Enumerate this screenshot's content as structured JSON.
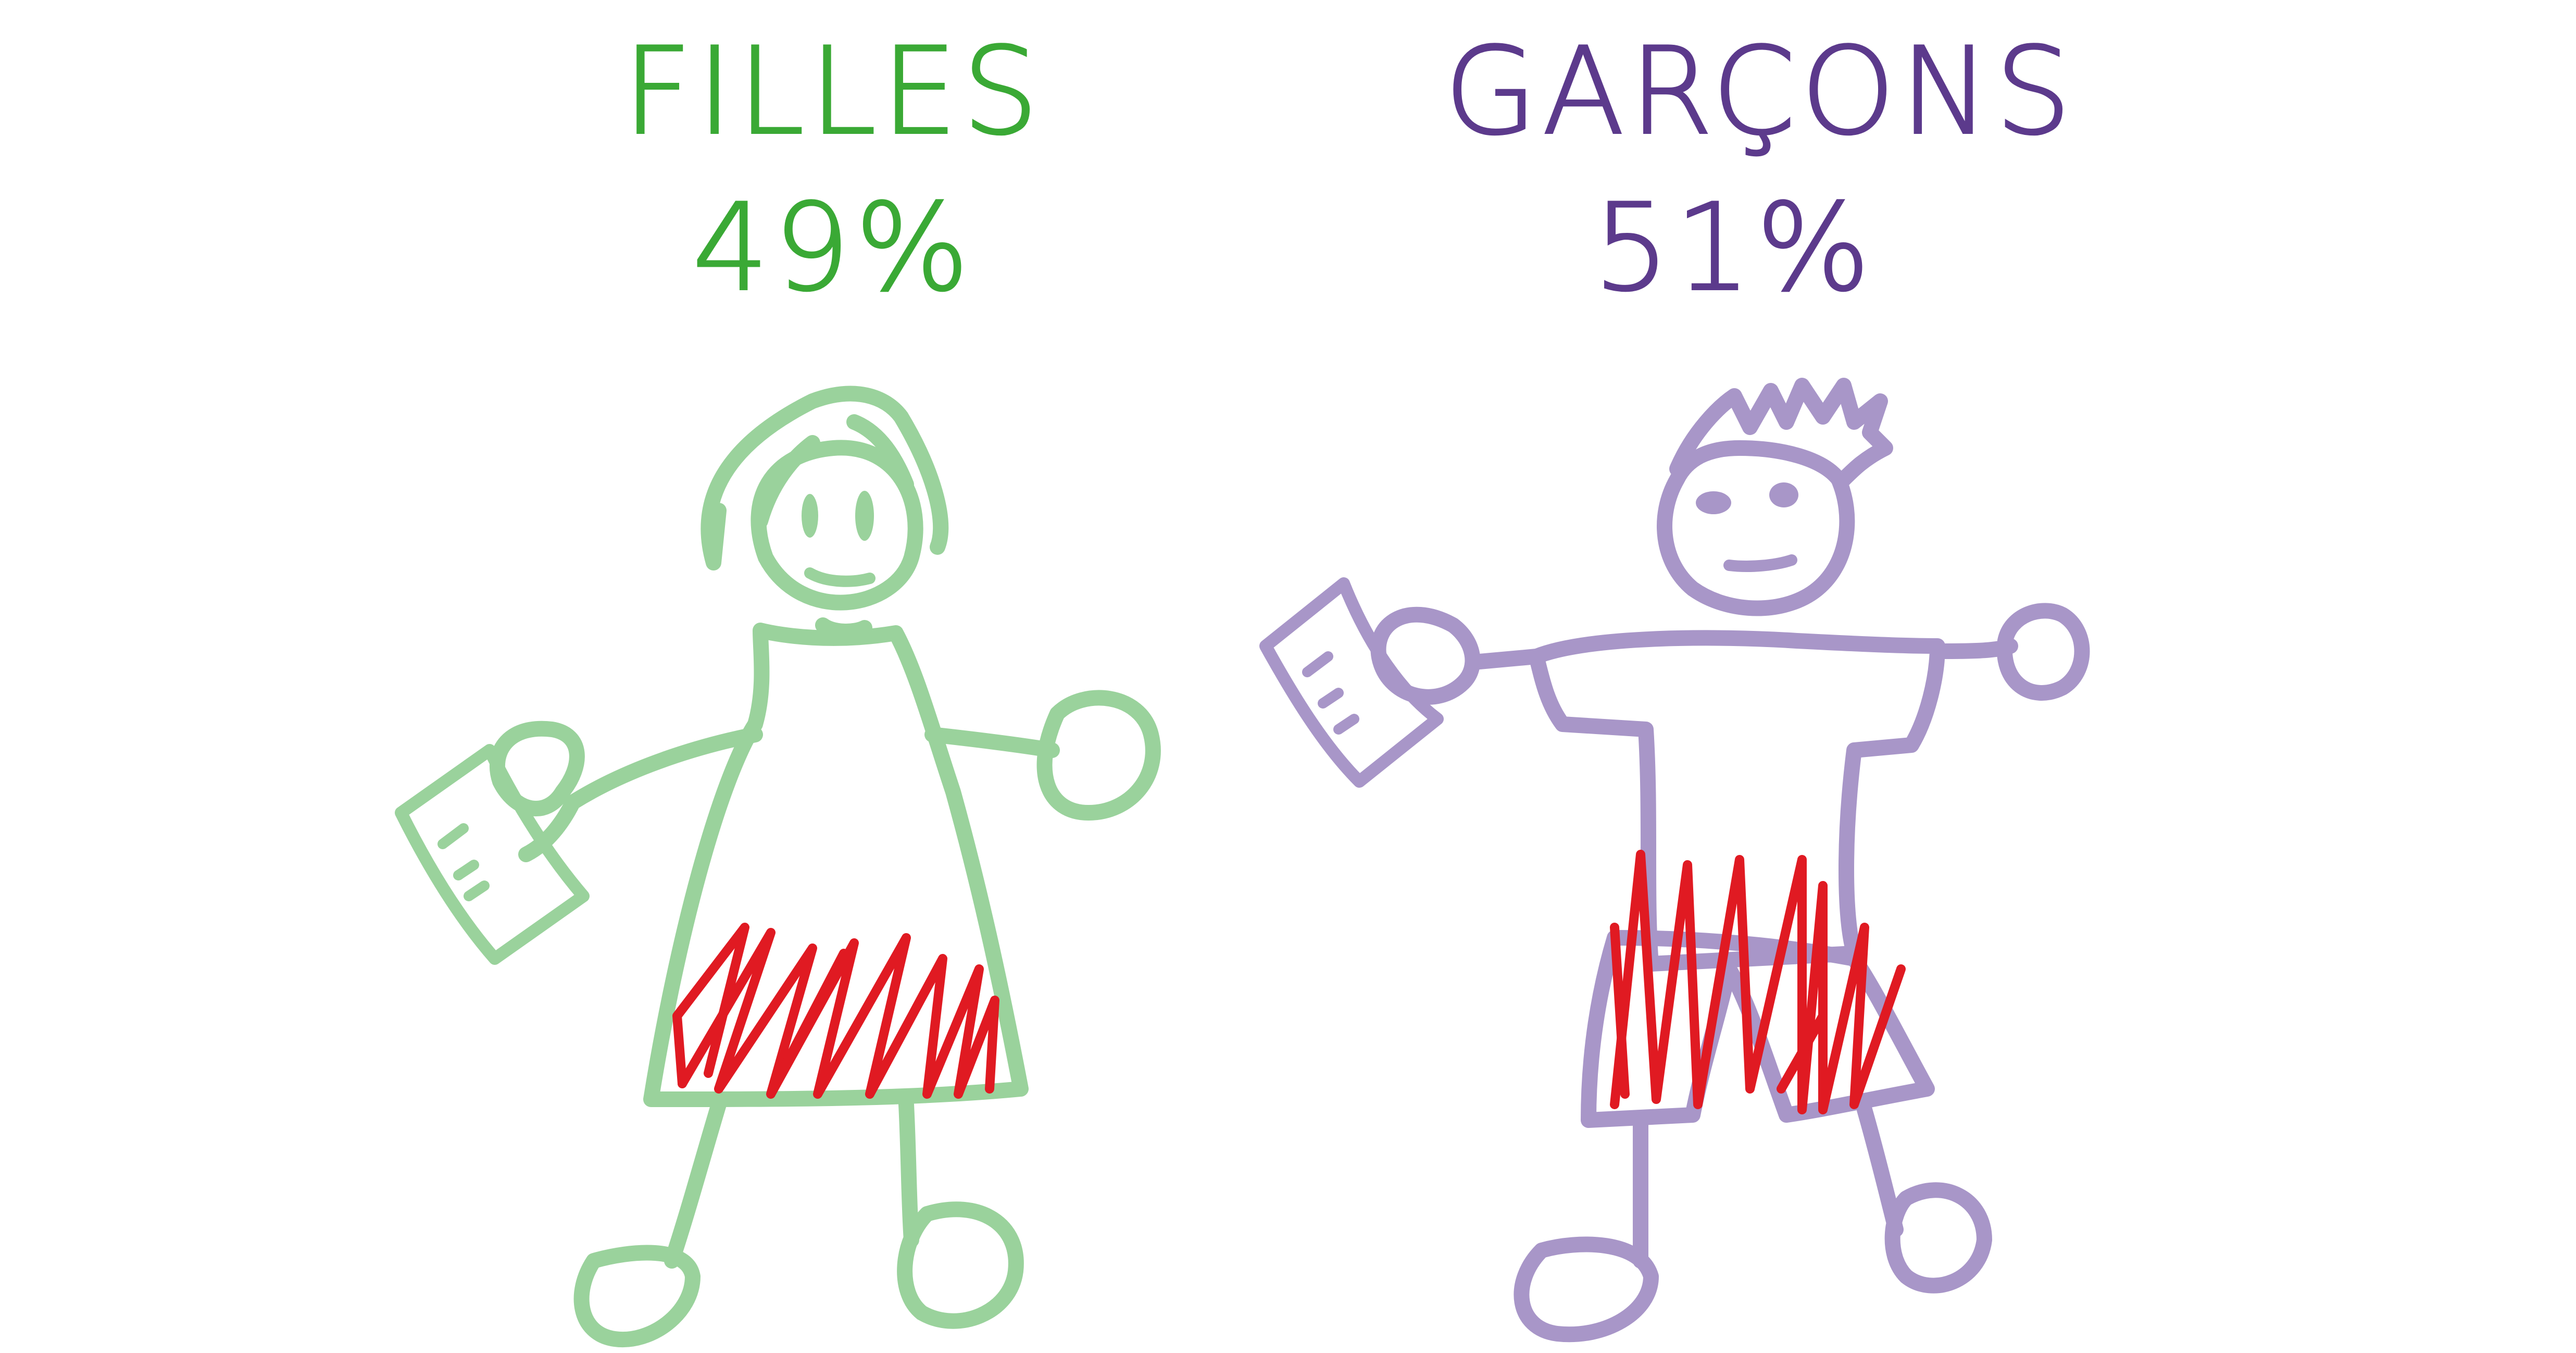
{
  "groups": [
    {
      "label": "FILLES",
      "percent_label": "49%",
      "percent": 49,
      "color": "#3aa935",
      "figure_color": "#9ad29c"
    },
    {
      "label": "GARÇONS",
      "percent_label": "51%",
      "percent": 51,
      "color": "#5c3a8c",
      "figure_color": "#a896c8"
    }
  ],
  "hatch_color": "#e01a22",
  "icons": {
    "girl": "girl-stick-figure-icon",
    "boy": "boy-stick-figure-icon",
    "paper_girl": "paper-sheet-icon",
    "paper_boy": "paper-sheet-icon"
  }
}
